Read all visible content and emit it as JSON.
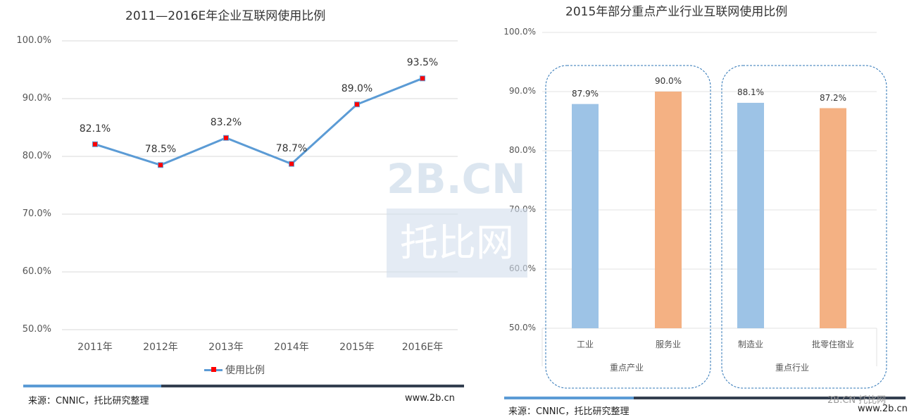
{
  "chart_data": [
    {
      "type": "line",
      "title": "2011—2016E年企业互联网使用比例",
      "categories": [
        "2011年",
        "2012年",
        "2013年",
        "2014年",
        "2015年",
        "2016E年"
      ],
      "series": [
        {
          "name": "使用比例",
          "values": [
            82.1,
            78.5,
            83.2,
            78.7,
            89.0,
            93.5
          ],
          "labels": [
            "82.1%",
            "78.5%",
            "83.2%",
            "78.7%",
            "89.0%",
            "93.5%"
          ]
        }
      ],
      "yticks": [
        "100.0%",
        "90.0%",
        "80.0%",
        "70.0%",
        "60.0%",
        "50.0%"
      ],
      "ylim": [
        50,
        100
      ],
      "grid": true,
      "legend": "bottom",
      "line_color": "#5b9bd5",
      "marker_color": "#ff0000"
    },
    {
      "type": "bar",
      "title": "2015年部分重点产业行业互联网使用比例",
      "categories": [
        "工业",
        "服务业",
        "制造业",
        "批零住宿业"
      ],
      "values": [
        87.9,
        90.0,
        88.1,
        87.2
      ],
      "labels": [
        "87.9%",
        "90.0%",
        "88.1%",
        "87.2%"
      ],
      "groups": [
        "重点产业",
        "重点行业"
      ],
      "yticks": [
        "100.0%",
        "90.0%",
        "80.0%",
        "70.0%",
        "60.0%",
        "50.0%"
      ],
      "ylim": [
        50,
        100
      ],
      "grid": true,
      "bar_colors": [
        "#9dc3e6",
        "#f4b183",
        "#9dc3e6",
        "#f4b183"
      ]
    }
  ],
  "footer_left": {
    "source": "来源：CNNIC，托比研究整理",
    "site": "www.2b.cn"
  },
  "footer_right": {
    "source": "来源：CNNIC，托比研究整理",
    "site": "www.2b.cn",
    "watermark": "2B.CN 托比网"
  },
  "watermark": {
    "line1": "2B.CN",
    "line2": "托比网"
  }
}
